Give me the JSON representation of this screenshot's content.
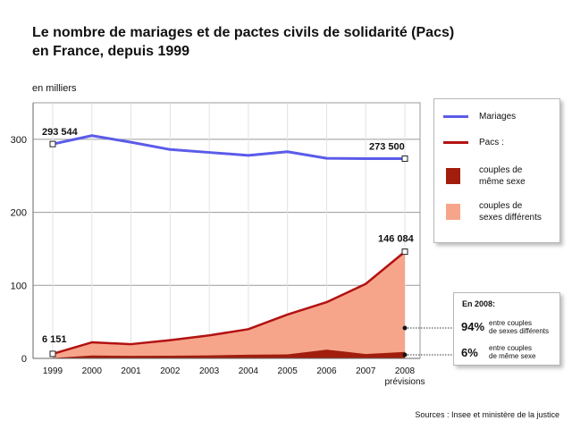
{
  "title_line1": "Le nombre de mariages et de pactes civils de solidarité (Pacs)",
  "title_line2": "en France, depuis 1999",
  "unit_label": "en milliers",
  "source": "Sources : Insee et ministère de la justice",
  "legend": {
    "mariages": "Mariages",
    "pacs": "Pacs :",
    "meme_sexe_1": "couples de",
    "meme_sexe_2": "même sexe",
    "sexes_diff_1": "couples de",
    "sexes_diff_2": "sexes différents"
  },
  "note": {
    "heading": "En 2008:",
    "pct_diff": "94%",
    "pct_diff_text_1": "entre couples",
    "pct_diff_text_2": "de sexes différents",
    "pct_same": "6%",
    "pct_same_text_1": "entre couples",
    "pct_same_text_2": "de même sexe"
  },
  "annotations": {
    "mariages_1999": "293 544",
    "mariages_2008": "273 500",
    "pacs_1999": "6 151",
    "pacs_2008": "146 084",
    "x_2008_sub": "prévisions"
  },
  "colors": {
    "mariages": "#5b5bea",
    "pacs": "#b31212",
    "meme_sexe": "#a11e0c",
    "sexes_diff": "#f6a58b",
    "grid": "#9a9a9a"
  },
  "chart_data": {
    "type": "line",
    "x": [
      1999,
      2000,
      2001,
      2002,
      2003,
      2004,
      2005,
      2006,
      2007,
      2008
    ],
    "ylabel": "en milliers",
    "ylim": [
      0,
      350
    ],
    "yticks": [
      0,
      100,
      200,
      300
    ],
    "series": [
      {
        "name": "Mariages",
        "kind": "line",
        "values": [
          293.5,
          305,
          296,
          286,
          282,
          278,
          283,
          274,
          273.5,
          273.5
        ]
      },
      {
        "name": "Pacs :",
        "kind": "line",
        "values": [
          6.2,
          22,
          19.5,
          25,
          31.5,
          40,
          60,
          77,
          102,
          146.1
        ]
      },
      {
        "name": "couples de même sexe",
        "kind": "area",
        "values": [
          0.4,
          4,
          3.5,
          3.6,
          4.2,
          5,
          5.5,
          12,
          6,
          8.8
        ]
      }
    ]
  }
}
